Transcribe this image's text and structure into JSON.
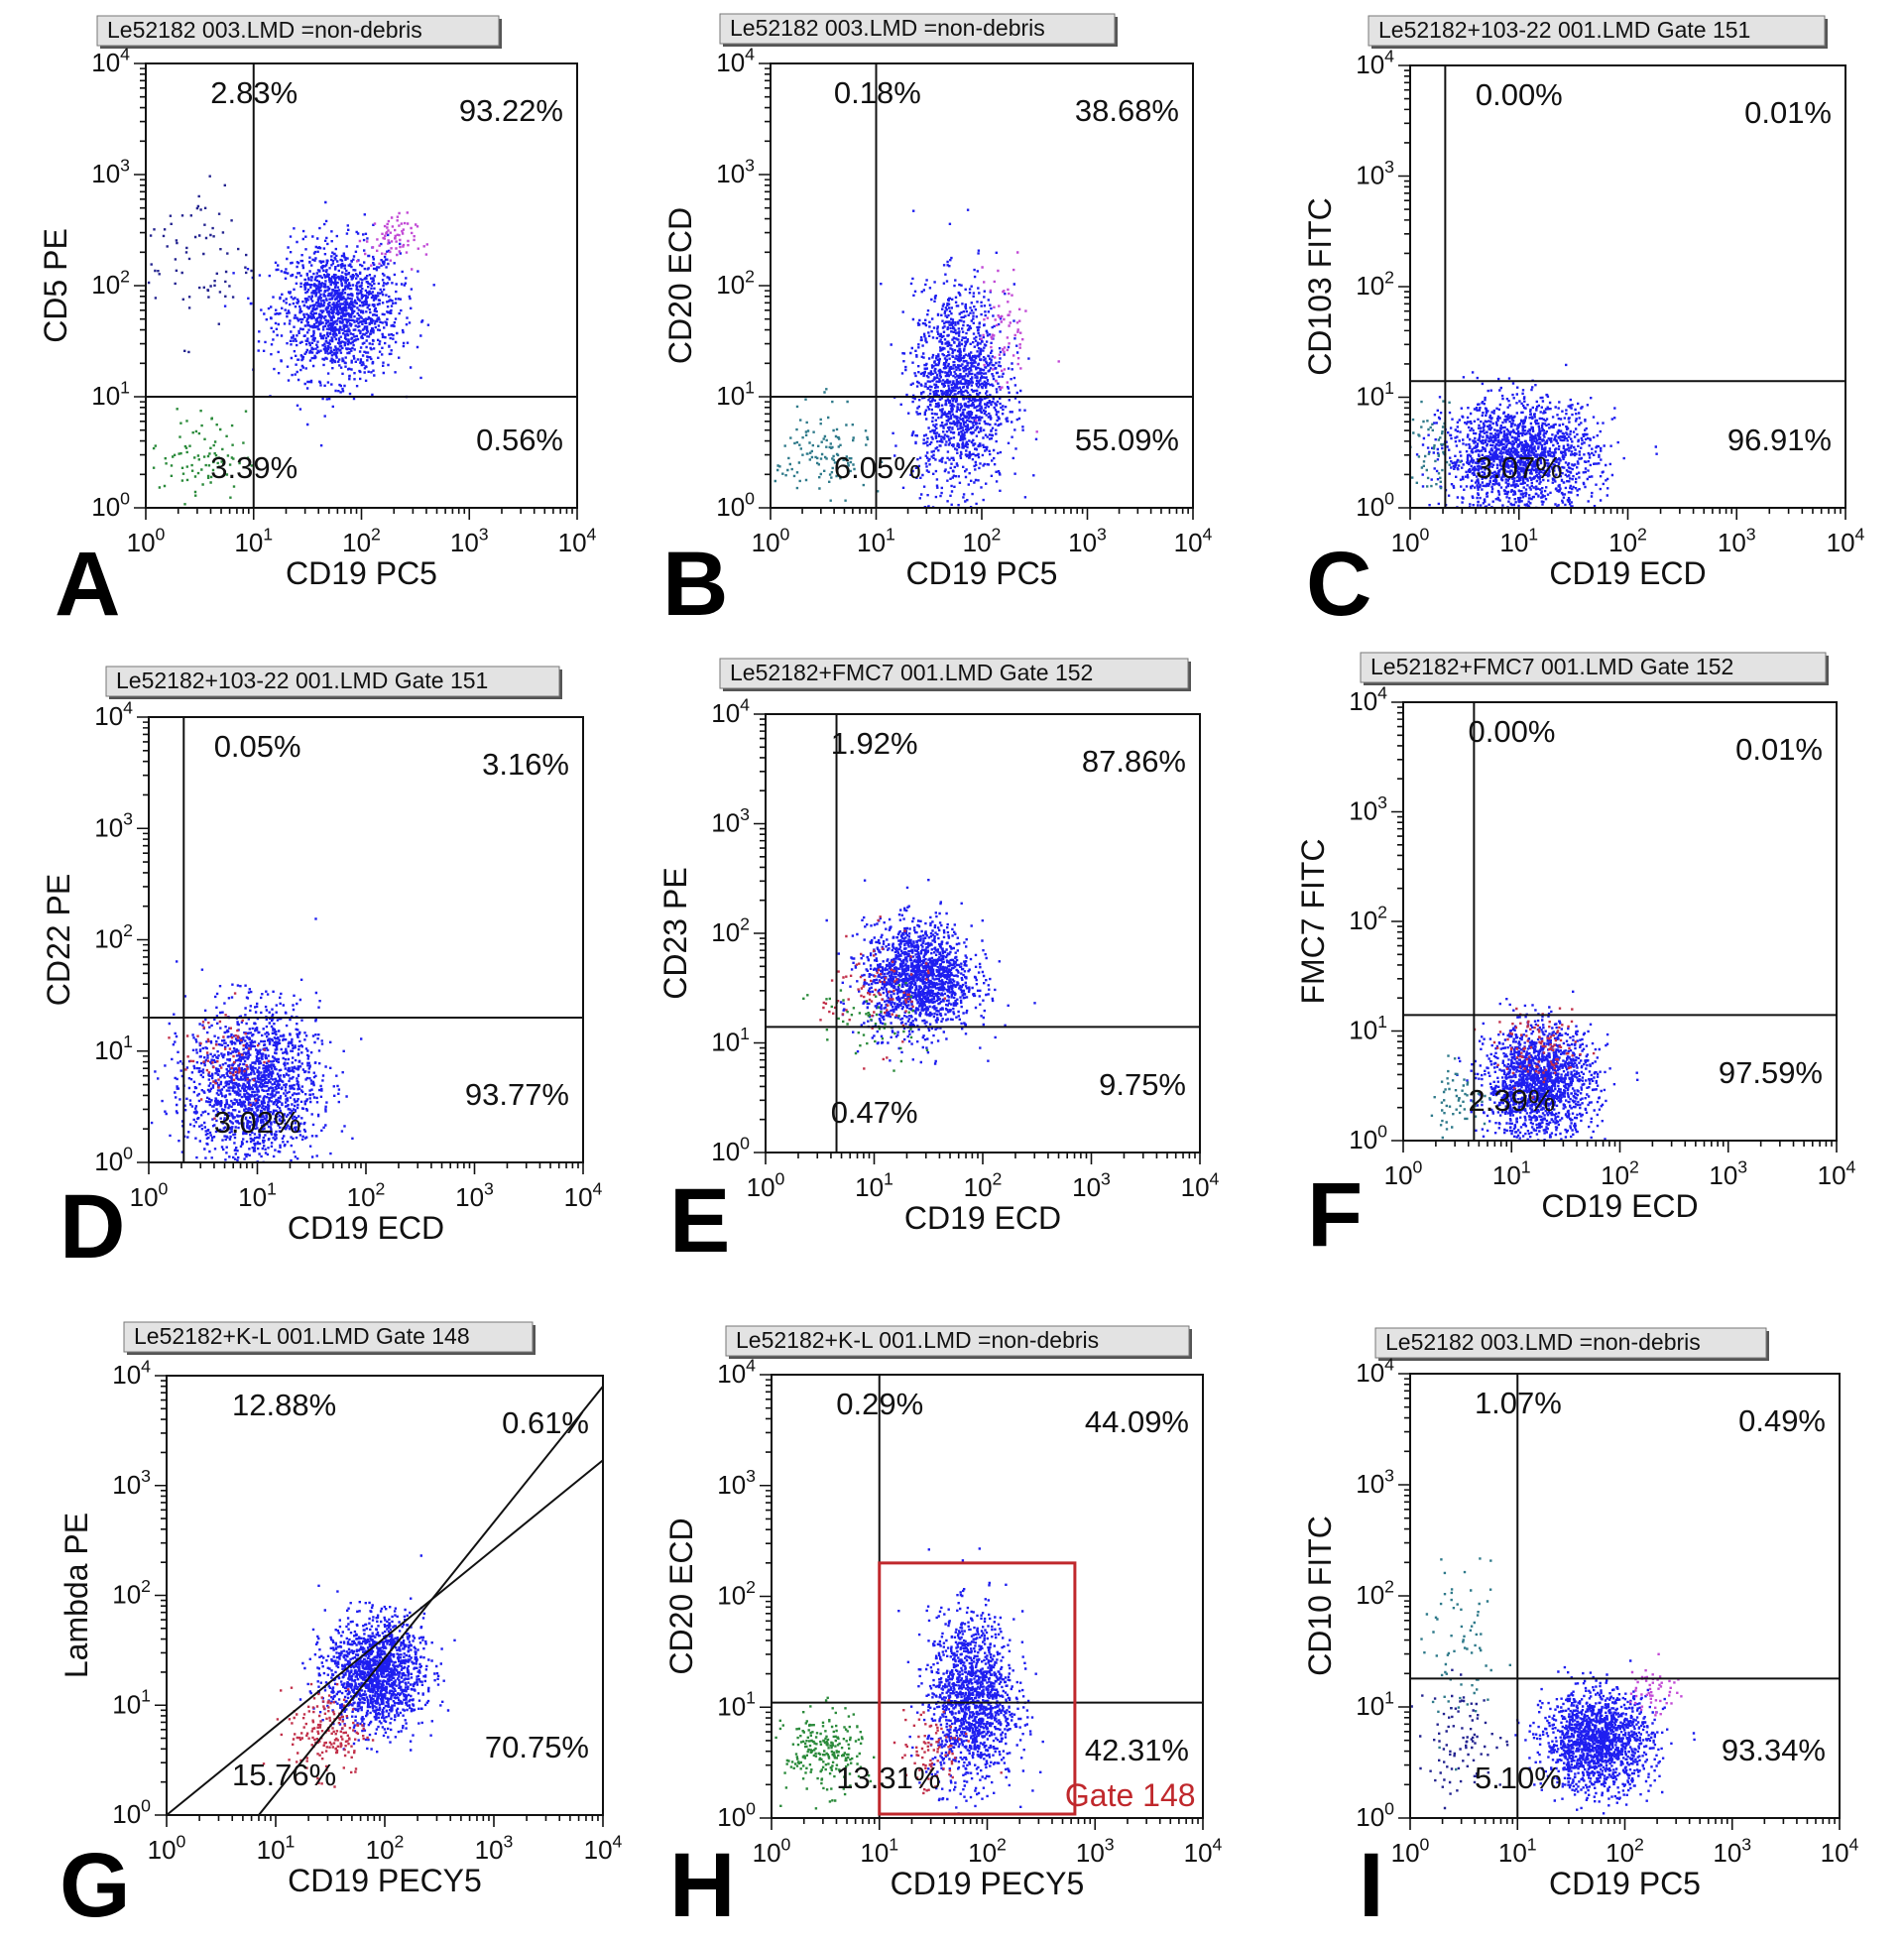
{
  "figure": {
    "panels": [
      {
        "letter": "A",
        "title": "Le52182 003.LMD  =non-debris",
        "xlabel": "CD19 PC5",
        "ylabel": "CD5 PE",
        "quadrants": {
          "ul": "2.83%",
          "ur": "93.22%",
          "ll": "3.39%",
          "lr": "0.56%"
        }
      },
      {
        "letter": "B",
        "title": "Le52182 003.LMD  =non-debris",
        "xlabel": "CD19 PC5",
        "ylabel": "CD20 ECD",
        "quadrants": {
          "ul": "0.18%",
          "ur": "38.68%",
          "ll": "6.05%",
          "lr": "55.09%"
        }
      },
      {
        "letter": "C",
        "title": "Le52182+103-22 001.LMD  Gate 151",
        "xlabel": "CD19 ECD",
        "ylabel": "CD103 FITC",
        "quadrants": {
          "ul": "0.00%",
          "ur": "0.01%",
          "ll": "3.07%",
          "lr": "96.91%"
        }
      },
      {
        "letter": "D",
        "title": "Le52182+103-22 001.LMD  Gate 151",
        "xlabel": "CD19 ECD",
        "ylabel": "CD22 PE",
        "quadrants": {
          "ul": "0.05%",
          "ur": "3.16%",
          "ll": "3.02%",
          "lr": "93.77%"
        }
      },
      {
        "letter": "E",
        "title": "Le52182+FMC7 001.LMD  Gate 152",
        "xlabel": "CD19 ECD",
        "ylabel": "CD23 PE",
        "quadrants": {
          "ul": "1.92%",
          "ur": "87.86%",
          "ll": "0.47%",
          "lr": "9.75%"
        }
      },
      {
        "letter": "F",
        "title": "Le52182+FMC7 001.LMD  Gate 152",
        "xlabel": "CD19 ECD",
        "ylabel": "FMC7 FITC",
        "quadrants": {
          "ul": "0.00%",
          "ur": "0.01%",
          "ll": "2.39%",
          "lr": "97.59%"
        }
      },
      {
        "letter": "G",
        "title": "Le52182+K-L 001.LMD  Gate 148",
        "xlabel": "CD19 PECY5",
        "ylabel": "Lambda PE",
        "quadrants": {
          "ul": "12.88%",
          "ur": "0.61%",
          "ll": "15.76%",
          "lr": "70.75%"
        }
      },
      {
        "letter": "H",
        "title": "Le52182+K-L 001.LMD  =non-debris",
        "xlabel": "CD19 PECY5",
        "ylabel": "CD20 ECD",
        "quadrants": {
          "ul": "0.29%",
          "ur": "44.09%",
          "ll": "13.31%",
          "lr": "42.31%"
        },
        "gate_label": "Gate 148"
      },
      {
        "letter": "I",
        "title": "Le52182 003.LMD  =non-debris",
        "xlabel": "CD19 PC5",
        "ylabel": "CD10 FITC",
        "quadrants": {
          "ul": "1.07%",
          "ur": "0.49%",
          "ll": "5.10%",
          "lr": "93.34%"
        }
      }
    ],
    "tick_labels": [
      "10^0",
      "10^1",
      "10^2",
      "10^3",
      "10^4"
    ]
  },
  "chart_data": [
    {
      "type": "scatter",
      "panel": "A",
      "title": "Le52182 003.LMD  =non-debris",
      "xlabel": "CD19 PC5",
      "ylabel": "CD5 PE",
      "xscale": "log",
      "yscale": "log",
      "xlim": [
        1,
        10000
      ],
      "ylim": [
        1,
        10000
      ],
      "grid": false,
      "quadrant_cut": {
        "x": 10,
        "y": 10
      },
      "quadrant_percent": {
        "upper_left": 2.83,
        "upper_right": 93.22,
        "lower_left": 3.39,
        "lower_right": 0.56
      },
      "populations": [
        {
          "color": "#1e1ef0",
          "center": [
            60,
            60
          ],
          "spread": [
            0.28,
            0.3
          ],
          "fraction": 0.82
        },
        {
          "color": "#c24ad6",
          "center": [
            180,
            260
          ],
          "spread": [
            0.12,
            0.12
          ],
          "fraction": 0.04
        },
        {
          "color": "#2a8a3a",
          "center": [
            3,
            3
          ],
          "spread": [
            0.22,
            0.2
          ],
          "fraction": 0.05
        },
        {
          "color": "#23238f",
          "center": [
            3,
            180
          ],
          "spread": [
            0.25,
            0.35
          ],
          "fraction": 0.04
        }
      ]
    },
    {
      "type": "scatter",
      "panel": "B",
      "title": "Le52182 003.LMD  =non-debris",
      "xlabel": "CD19 PC5",
      "ylabel": "CD20 ECD",
      "xscale": "log",
      "yscale": "log",
      "xlim": [
        1,
        10000
      ],
      "ylim": [
        1,
        10000
      ],
      "grid": false,
      "quadrant_cut": {
        "x": 10,
        "y": 10
      },
      "quadrant_percent": {
        "upper_left": 0.18,
        "upper_right": 38.68,
        "lower_left": 6.05,
        "lower_right": 55.09
      },
      "populations": [
        {
          "color": "#1e1ef0",
          "center": [
            60,
            12
          ],
          "spread": [
            0.22,
            0.45
          ],
          "fraction": 0.85
        },
        {
          "color": "#c24ad6",
          "center": [
            160,
            40
          ],
          "spread": [
            0.12,
            0.3
          ],
          "fraction": 0.04
        },
        {
          "color": "#2f7a8a",
          "center": [
            3,
            3
          ],
          "spread": [
            0.22,
            0.22
          ],
          "fraction": 0.07
        }
      ]
    },
    {
      "type": "scatter",
      "panel": "C",
      "title": "Le52182+103-22 001.LMD  Gate 151",
      "xlabel": "CD19 ECD",
      "ylabel": "CD103 FITC",
      "xscale": "log",
      "yscale": "log",
      "xlim": [
        1,
        10000
      ],
      "ylim": [
        1,
        10000
      ],
      "grid": false,
      "quadrant_cut": {
        "x": 2.1,
        "y": 14
      },
      "quadrant_percent": {
        "upper_left": 0.0,
        "upper_right": 0.01,
        "lower_left": 3.07,
        "lower_right": 96.91
      },
      "populations": [
        {
          "color": "#1e1ef0",
          "center": [
            10,
            3
          ],
          "spread": [
            0.35,
            0.25
          ],
          "fraction": 0.96
        },
        {
          "color": "#2f7a8a",
          "center": [
            1.6,
            3
          ],
          "spread": [
            0.1,
            0.2
          ],
          "fraction": 0.03
        }
      ]
    },
    {
      "type": "scatter",
      "panel": "D",
      "title": "Le52182+103-22 001.LMD  Gate 151",
      "xlabel": "CD19 ECD",
      "ylabel": "CD22 PE",
      "xscale": "log",
      "yscale": "log",
      "xlim": [
        1,
        10000
      ],
      "ylim": [
        1,
        10000
      ],
      "grid": false,
      "quadrant_cut": {
        "x": 2.1,
        "y": 20
      },
      "quadrant_percent": {
        "upper_left": 0.05,
        "upper_right": 3.16,
        "lower_left": 3.02,
        "lower_right": 93.77
      },
      "populations": [
        {
          "color": "#1e1ef0",
          "center": [
            9,
            5
          ],
          "spread": [
            0.3,
            0.35
          ],
          "fraction": 0.93
        },
        {
          "color": "#c2304a",
          "center": [
            5,
            10
          ],
          "spread": [
            0.2,
            0.25
          ],
          "fraction": 0.04
        }
      ]
    },
    {
      "type": "scatter",
      "panel": "E",
      "title": "Le52182+FMC7 001.LMD  Gate 152",
      "xlabel": "CD19 ECD",
      "ylabel": "CD23 PE",
      "xscale": "log",
      "yscale": "log",
      "xlim": [
        1,
        10000
      ],
      "ylim": [
        1,
        10000
      ],
      "grid": false,
      "quadrant_cut": {
        "x": 4.5,
        "y": 14
      },
      "quadrant_percent": {
        "upper_left": 1.92,
        "upper_right": 87.86,
        "lower_left": 0.47,
        "lower_right": 9.75
      },
      "populations": [
        {
          "color": "#1e1ef0",
          "center": [
            25,
            40
          ],
          "spread": [
            0.25,
            0.25
          ],
          "fraction": 0.9
        },
        {
          "color": "#c2304a",
          "center": [
            10,
            30
          ],
          "spread": [
            0.25,
            0.25
          ],
          "fraction": 0.05
        },
        {
          "color": "#2a8a3a",
          "center": [
            8,
            15
          ],
          "spread": [
            0.25,
            0.2
          ],
          "fraction": 0.03
        }
      ]
    },
    {
      "type": "scatter",
      "panel": "F",
      "title": "Le52182+FMC7 001.LMD  Gate 152",
      "xlabel": "CD19 ECD",
      "ylabel": "FMC7 FITC",
      "xscale": "log",
      "yscale": "log",
      "xlim": [
        1,
        10000
      ],
      "ylim": [
        1,
        10000
      ],
      "grid": false,
      "quadrant_cut": {
        "x": 4.5,
        "y": 14
      },
      "quadrant_percent": {
        "upper_left": 0.0,
        "upper_right": 0.01,
        "lower_left": 2.39,
        "lower_right": 97.59
      },
      "populations": [
        {
          "color": "#1e1ef0",
          "center": [
            18,
            3.5
          ],
          "spread": [
            0.25,
            0.25
          ],
          "fraction": 0.9
        },
        {
          "color": "#c2304a",
          "center": [
            18,
            7
          ],
          "spread": [
            0.2,
            0.15
          ],
          "fraction": 0.06
        },
        {
          "color": "#2f7a8a",
          "center": [
            3,
            2.5
          ],
          "spread": [
            0.15,
            0.15
          ],
          "fraction": 0.03
        }
      ]
    },
    {
      "type": "scatter",
      "panel": "G",
      "title": "Le52182+K-L 001.LMD  Gate 148",
      "xlabel": "CD19 PECY5",
      "ylabel": "Lambda PE",
      "xscale": "log",
      "yscale": "log",
      "xlim": [
        1,
        10000
      ],
      "ylim": [
        1,
        10000
      ],
      "grid": false,
      "diagonal_gates": [
        {
          "from": [
            1,
            1
          ],
          "to": [
            10000,
            1700
          ]
        },
        {
          "from": [
            7,
            1
          ],
          "to": [
            10000,
            8000
          ]
        }
      ],
      "quadrant_percent": {
        "upper_left": 12.88,
        "upper_right": 0.61,
        "lower_left": 15.76,
        "lower_right": 70.75
      },
      "populations": [
        {
          "color": "#1e1ef0",
          "center": [
            80,
            20
          ],
          "spread": [
            0.22,
            0.25
          ],
          "fraction": 0.86
        },
        {
          "color": "#c2304a",
          "center": [
            30,
            6
          ],
          "spread": [
            0.18,
            0.2
          ],
          "fraction": 0.1
        }
      ]
    },
    {
      "type": "scatter",
      "panel": "H",
      "title": "Le52182+K-L 001.LMD  =non-debris",
      "xlabel": "CD19 PECY5",
      "ylabel": "CD20 ECD",
      "xscale": "log",
      "yscale": "log",
      "xlim": [
        1,
        10000
      ],
      "ylim": [
        1,
        10000
      ],
      "grid": false,
      "quadrant_cut": {
        "x": 10,
        "y": 11
      },
      "quadrant_percent": {
        "upper_left": 0.29,
        "upper_right": 44.09,
        "lower_left": 13.31,
        "lower_right": 42.31
      },
      "rect_gate": {
        "label": "Gate 148",
        "x": [
          10,
          650
        ],
        "y": [
          1,
          200
        ],
        "color": "#c0282c"
      },
      "populations": [
        {
          "color": "#1e1ef0",
          "center": [
            70,
            12
          ],
          "spread": [
            0.2,
            0.38
          ],
          "fraction": 0.8
        },
        {
          "color": "#c2304a",
          "center": [
            30,
            4
          ],
          "spread": [
            0.15,
            0.2
          ],
          "fraction": 0.05
        },
        {
          "color": "#2a8a3a",
          "center": [
            3,
            4
          ],
          "spread": [
            0.18,
            0.18
          ],
          "fraction": 0.13
        }
      ]
    },
    {
      "type": "scatter",
      "panel": "I",
      "title": "Le52182 003.LMD  =non-debris",
      "xlabel": "CD19 PC5",
      "ylabel": "CD10 FITC",
      "xscale": "log",
      "yscale": "log",
      "xlim": [
        1,
        10000
      ],
      "ylim": [
        1,
        10000
      ],
      "grid": false,
      "quadrant_cut": {
        "x": 10,
        "y": 18
      },
      "quadrant_percent": {
        "upper_left": 1.07,
        "upper_right": 0.49,
        "lower_left": 5.1,
        "lower_right": 93.34
      },
      "populations": [
        {
          "color": "#1e1ef0",
          "center": [
            55,
            5
          ],
          "spread": [
            0.25,
            0.22
          ],
          "fraction": 0.86
        },
        {
          "color": "#c24ad6",
          "center": [
            180,
            15
          ],
          "spread": [
            0.12,
            0.12
          ],
          "fraction": 0.03
        },
        {
          "color": "#2f7a8a",
          "center": [
            3,
            30
          ],
          "spread": [
            0.18,
            0.35
          ],
          "fraction": 0.04
        },
        {
          "color": "#23238f",
          "center": [
            3,
            5
          ],
          "spread": [
            0.2,
            0.25
          ],
          "fraction": 0.05
        }
      ]
    }
  ]
}
